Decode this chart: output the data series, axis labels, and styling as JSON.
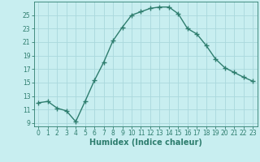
{
  "x": [
    0,
    1,
    2,
    3,
    4,
    5,
    6,
    7,
    8,
    9,
    10,
    11,
    12,
    13,
    14,
    15,
    16,
    17,
    18,
    19,
    20,
    21,
    22,
    23
  ],
  "y": [
    12.0,
    12.2,
    11.2,
    10.8,
    9.2,
    12.2,
    15.3,
    18.0,
    21.2,
    23.2,
    25.0,
    25.5,
    26.0,
    26.2,
    26.2,
    25.2,
    23.0,
    22.2,
    20.5,
    18.5,
    17.2,
    16.5,
    15.8,
    15.2
  ],
  "xlabel": "Humidex (Indice chaleur)",
  "line_color": "#2e7d6e",
  "marker": "+",
  "marker_size": 4,
  "bg_color": "#c8eef0",
  "grid_color": "#aad8dc",
  "text_color": "#2e7d6e",
  "ylim": [
    8.5,
    27
  ],
  "xlim": [
    -0.5,
    23.5
  ],
  "yticks": [
    9,
    11,
    13,
    15,
    17,
    19,
    21,
    23,
    25
  ],
  "xticks": [
    0,
    1,
    2,
    3,
    4,
    5,
    6,
    7,
    8,
    9,
    10,
    11,
    12,
    13,
    14,
    15,
    16,
    17,
    18,
    19,
    20,
    21,
    22,
    23
  ],
  "xlabel_fontsize": 7,
  "tick_fontsize": 5.5,
  "linewidth": 1.0
}
